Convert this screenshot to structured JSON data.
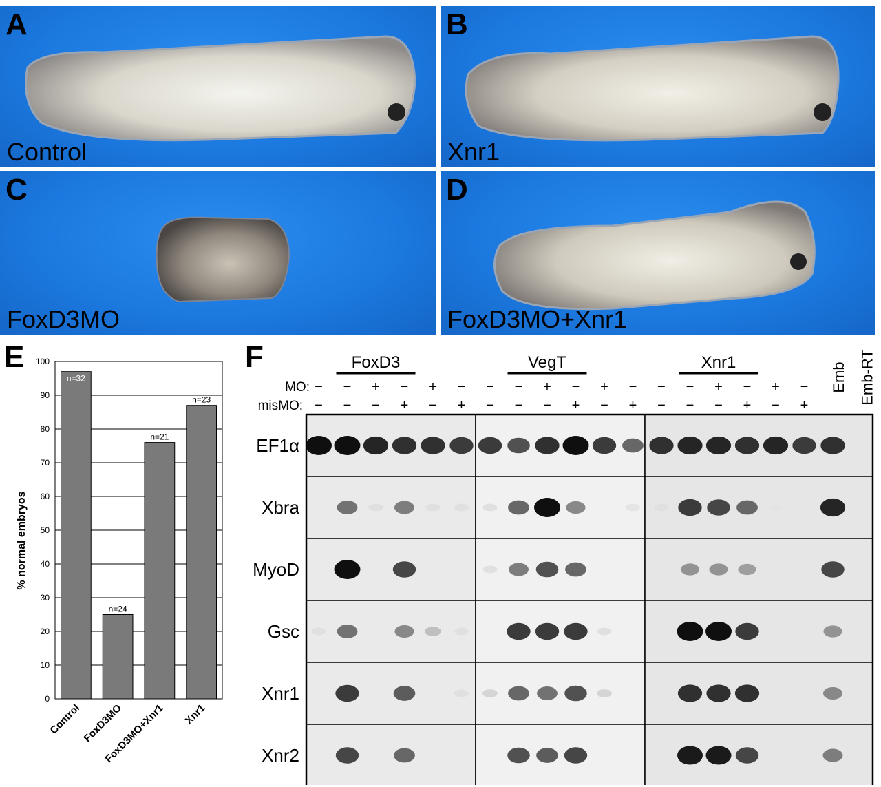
{
  "panels": [
    {
      "letter": "A",
      "label": "Control"
    },
    {
      "letter": "B",
      "label": "Xnr1"
    },
    {
      "letter": "C",
      "label": "FoxD3MO"
    },
    {
      "letter": "D",
      "label": "FoxD3MO+Xnr1"
    }
  ],
  "panel_e_letter": "E",
  "panel_f_letter": "F",
  "chart_data": {
    "type": "bar",
    "categories": [
      "Control",
      "FoxD3MO",
      "FoxD3MO+Xnr1",
      "Xnr1"
    ],
    "values": [
      97,
      25,
      76,
      87
    ],
    "bar_labels": [
      "n=32",
      "n=24",
      "n=21",
      "n=23"
    ],
    "ylabel": "% normal embryos",
    "xlabel": "",
    "ylim": [
      0,
      100
    ],
    "yticks": [
      "0",
      "10",
      "20",
      "30",
      "40",
      "50",
      "60",
      "70",
      "80",
      "90",
      "100"
    ],
    "grid": true,
    "bar_color": "#7a7a7a"
  },
  "gel": {
    "groups": [
      "FoxD3",
      "VegT",
      "Xnr1"
    ],
    "row_labels": [
      "MO:",
      "misMO:"
    ],
    "mo_row": [
      "−",
      "−",
      "+",
      "−",
      "+",
      "−",
      "−",
      "−",
      "+",
      "−",
      "+",
      "−",
      "−",
      "−",
      "+",
      "−",
      "+",
      "−"
    ],
    "mismo_row": [
      "−",
      "−",
      "−",
      "+",
      "−",
      "+",
      "−",
      "−",
      "−",
      "+",
      "−",
      "+",
      "−",
      "−",
      "−",
      "+",
      "−",
      "+"
    ],
    "controls": [
      "Emb",
      "Emb-RT"
    ],
    "genes": [
      "EF1α",
      "Xbra",
      "MyoD",
      "Gsc",
      "Xnr1",
      "Xnr2"
    ]
  }
}
